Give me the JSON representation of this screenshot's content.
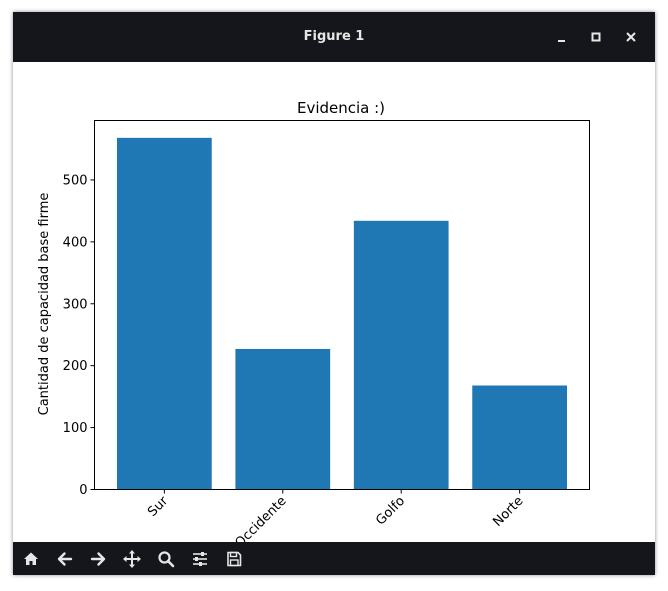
{
  "window": {
    "title": "Figure 1"
  },
  "window_buttons": [
    {
      "name": "minimize-icon"
    },
    {
      "name": "maximize-icon"
    },
    {
      "name": "close-icon"
    }
  ],
  "toolbar": {
    "tools": [
      {
        "name": "home-icon"
      },
      {
        "name": "back-arrow-icon"
      },
      {
        "name": "forward-arrow-icon"
      },
      {
        "name": "pan-move-icon"
      },
      {
        "name": "zoom-magnifier-icon"
      },
      {
        "name": "configure-subplots-icon"
      },
      {
        "name": "save-floppy-icon"
      }
    ]
  },
  "colors": {
    "titlebar": "#15161b",
    "bar": "#1f77b4",
    "toolbar_icon": "#e6e6e6"
  },
  "chart_data": {
    "type": "bar",
    "title": "Evidencia :)",
    "xlabel": "",
    "ylabel": "Cantidad de capacidad base firme",
    "categories": [
      "Sur",
      "Occidente",
      "Golfo",
      "Norte"
    ],
    "values": [
      568,
      227,
      434,
      168
    ],
    "ylim": [
      0,
      596
    ],
    "yticks": [
      0,
      100,
      200,
      300,
      400,
      500
    ],
    "xtick_rotation": 45,
    "grid": false,
    "legend": "none"
  }
}
